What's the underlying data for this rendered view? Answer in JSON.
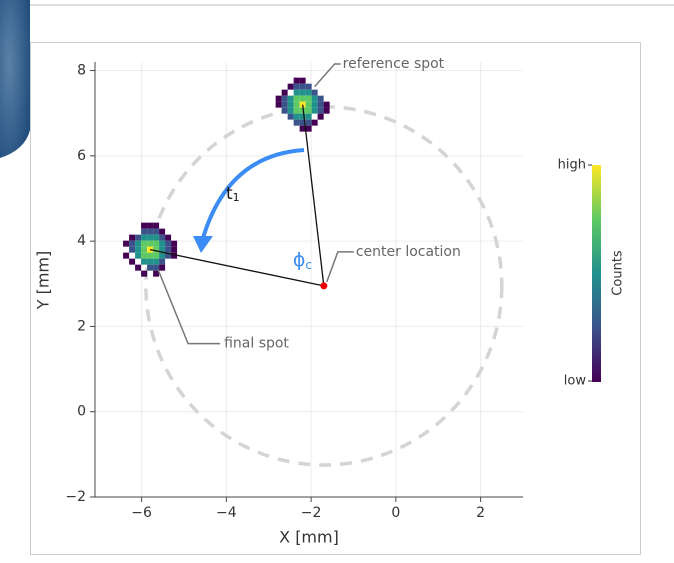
{
  "chart_data": {
    "type": "scatter",
    "x_label": "X [mm]",
    "y_label": "Y [mm]",
    "xlim": [
      -7.1,
      3
    ],
    "ylim": [
      -2,
      8.2
    ],
    "xticks": [
      {
        "value": -6,
        "label": "−6"
      },
      {
        "value": -4,
        "label": "−4"
      },
      {
        "value": -2,
        "label": "−2"
      },
      0,
      2
    ],
    "yticks": [
      {
        "value": -2,
        "label": "−2"
      },
      0,
      2,
      4,
      6,
      8
    ],
    "grid": true,
    "points": [
      {
        "label": "reference spot",
        "x": -2.2,
        "y": 7.2
      },
      {
        "label": "center location",
        "x": -1.7,
        "y": 2.95
      },
      {
        "label": "final spot",
        "x": -5.8,
        "y": 3.8
      }
    ],
    "circle_radius": 4.2,
    "rotation_label": {
      "symbol": "t",
      "sub": "1"
    },
    "angle_label": {
      "symbol": "ϕ",
      "sub": "c"
    },
    "colorbar": {
      "title": "Counts",
      "high": "high",
      "low": "low"
    }
  }
}
